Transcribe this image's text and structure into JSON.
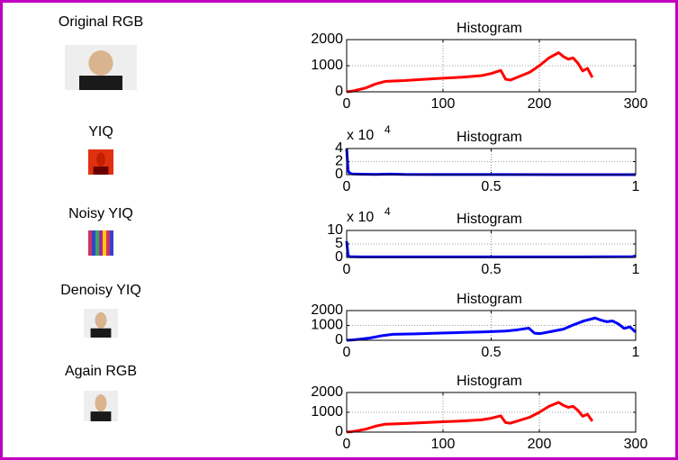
{
  "images": [
    {
      "title": "Original RGB"
    },
    {
      "title": "YIQ"
    },
    {
      "title": "Noisy YIQ"
    },
    {
      "title": "Denoisy YIQ"
    },
    {
      "title": "Again RGB"
    }
  ],
  "chart_data": [
    {
      "type": "line",
      "title": "Histogram",
      "grid": true,
      "xlim": [
        0,
        300
      ],
      "xticks": [
        0,
        100,
        200,
        300
      ],
      "ylim": [
        0,
        2000
      ],
      "yticks": [
        0,
        1000,
        2000
      ],
      "x": [
        0,
        5,
        10,
        20,
        30,
        40,
        60,
        80,
        100,
        120,
        140,
        150,
        160,
        165,
        170,
        180,
        190,
        200,
        210,
        220,
        225,
        230,
        235,
        240,
        245,
        250,
        255
      ],
      "series": [
        {
          "color": "#ff0000",
          "values": [
            0,
            20,
            60,
            150,
            300,
            400,
            430,
            480,
            520,
            560,
            620,
            700,
            820,
            480,
            450,
            600,
            750,
            1000,
            1300,
            1500,
            1350,
            1250,
            1300,
            1100,
            800,
            900,
            550
          ]
        }
      ]
    },
    {
      "type": "line",
      "title": "Histogram",
      "grid": true,
      "xlim": [
        0,
        1
      ],
      "xticks": [
        0,
        0.5,
        1
      ],
      "ylim": [
        0,
        40000
      ],
      "yticks": [
        {
          "value": 0,
          "label": "0"
        },
        {
          "value": 20000,
          "label": "2"
        },
        {
          "value": 40000,
          "label": "4"
        }
      ],
      "y_multiplier": {
        "base": "x 10",
        "exponent": 4
      },
      "x": [
        0,
        0.005,
        0.01,
        0.02,
        0.05,
        0.1,
        0.15,
        0.2,
        0.3,
        0.5,
        0.75,
        1
      ],
      "series": [
        {
          "color": "#0000ff",
          "values": [
            40000,
            6000,
            2500,
            1000,
            600,
            300,
            900,
            300,
            200,
            100,
            50,
            0
          ]
        }
      ]
    },
    {
      "type": "line",
      "title": "Histogram",
      "grid": true,
      "xlim": [
        0,
        1
      ],
      "xticks": [
        0,
        0.5,
        1
      ],
      "ylim": [
        0,
        100000
      ],
      "yticks": [
        {
          "value": 0,
          "label": "0"
        },
        {
          "value": 50000,
          "label": "5"
        },
        {
          "value": 100000,
          "label": "10"
        }
      ],
      "y_multiplier": {
        "base": "x 10",
        "exponent": 4
      },
      "x": [
        0,
        0.005,
        0.01,
        0.05,
        0.2,
        0.5,
        0.8,
        0.99,
        1
      ],
      "series": [
        {
          "color": "#0000ff",
          "values": [
            60000,
            8000,
            3000,
            2000,
            2000,
            2000,
            2000,
            3000,
            6000
          ]
        }
      ]
    },
    {
      "type": "line",
      "title": "Histogram",
      "grid": true,
      "xlim": [
        0,
        1
      ],
      "xticks": [
        0,
        0.5,
        1
      ],
      "ylim": [
        0,
        2000
      ],
      "yticks": [
        0,
        1000,
        2000
      ],
      "x": [
        0,
        0.02,
        0.04,
        0.08,
        0.12,
        0.16,
        0.24,
        0.31,
        0.39,
        0.47,
        0.55,
        0.59,
        0.63,
        0.65,
        0.67,
        0.71,
        0.75,
        0.78,
        0.82,
        0.86,
        0.88,
        0.9,
        0.92,
        0.94,
        0.96,
        0.98,
        1
      ],
      "series": [
        {
          "color": "#0000ff",
          "values": [
            0,
            20,
            60,
            150,
            300,
            400,
            430,
            480,
            520,
            560,
            620,
            700,
            820,
            480,
            450,
            600,
            750,
            1000,
            1300,
            1500,
            1350,
            1250,
            1300,
            1100,
            800,
            900,
            550
          ]
        }
      ]
    },
    {
      "type": "line",
      "title": "Histogram",
      "grid": true,
      "xlim": [
        0,
        300
      ],
      "xticks": [
        0,
        100,
        200,
        300
      ],
      "ylim": [
        0,
        2000
      ],
      "yticks": [
        0,
        1000,
        2000
      ],
      "x": [
        0,
        5,
        10,
        20,
        30,
        40,
        60,
        80,
        100,
        120,
        140,
        150,
        160,
        165,
        170,
        180,
        190,
        200,
        210,
        220,
        225,
        230,
        235,
        240,
        245,
        250,
        255
      ],
      "series": [
        {
          "color": "#ff0000",
          "values": [
            0,
            20,
            60,
            150,
            300,
            400,
            430,
            480,
            520,
            560,
            620,
            700,
            820,
            480,
            450,
            600,
            750,
            1000,
            1300,
            1500,
            1350,
            1250,
            1300,
            1100,
            800,
            900,
            550
          ]
        }
      ]
    }
  ]
}
